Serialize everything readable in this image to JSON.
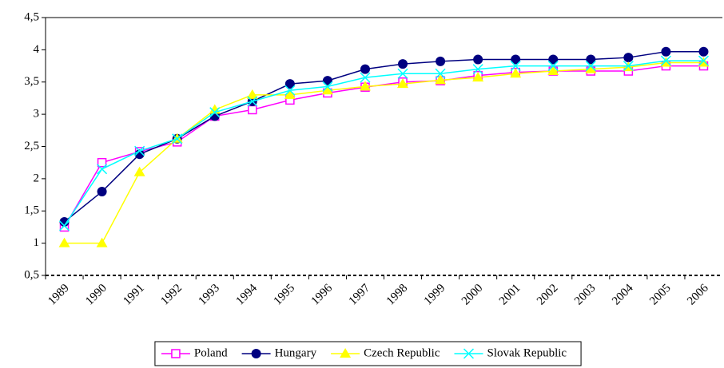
{
  "chart_data": {
    "type": "line",
    "categories": [
      "1989",
      "1990",
      "1991",
      "1992",
      "1993",
      "1994",
      "1995",
      "1996",
      "1997",
      "1998",
      "1999",
      "2000",
      "2001",
      "2002",
      "2003",
      "2004",
      "2005",
      "2006"
    ],
    "series": [
      {
        "name": "Poland",
        "color": "#ff00ff",
        "marker": "square",
        "values": [
          1.25,
          2.25,
          2.42,
          2.57,
          2.97,
          3.07,
          3.22,
          3.33,
          3.42,
          3.5,
          3.52,
          3.6,
          3.65,
          3.67,
          3.67,
          3.67,
          3.75,
          3.75
        ]
      },
      {
        "name": "Hungary",
        "color": "#000080",
        "marker": "circle",
        "values": [
          1.33,
          1.8,
          2.38,
          2.62,
          2.97,
          3.2,
          3.47,
          3.52,
          3.7,
          3.78,
          3.82,
          3.85,
          3.85,
          3.85,
          3.85,
          3.88,
          3.97,
          3.97
        ]
      },
      {
        "name": "Czech Republic",
        "color": "#ffff00",
        "marker": "triangle",
        "values": [
          1,
          1,
          2.1,
          2.62,
          3.07,
          3.3,
          3.3,
          3.37,
          3.43,
          3.47,
          3.53,
          3.57,
          3.63,
          3.67,
          3.7,
          3.73,
          3.8,
          3.8
        ]
      },
      {
        "name": "Slovak Republic",
        "color": "#00ffff",
        "marker": "cross",
        "values": [
          1.27,
          2.15,
          2.43,
          2.62,
          3.03,
          3.2,
          3.37,
          3.43,
          3.57,
          3.63,
          3.63,
          3.7,
          3.75,
          3.75,
          3.75,
          3.75,
          3.83,
          3.83
        ]
      }
    ],
    "ylim": [
      0.5,
      4.5
    ],
    "yticks": [
      {
        "value": 0.5,
        "label": "0,5"
      },
      1,
      {
        "value": 1.5,
        "label": "1,5"
      },
      2,
      {
        "value": 2.5,
        "label": "2,5"
      },
      3,
      {
        "value": 3.5,
        "label": "3,5"
      },
      4,
      {
        "value": 4.5,
        "label": "4,5"
      }
    ],
    "legend": "bottom"
  }
}
